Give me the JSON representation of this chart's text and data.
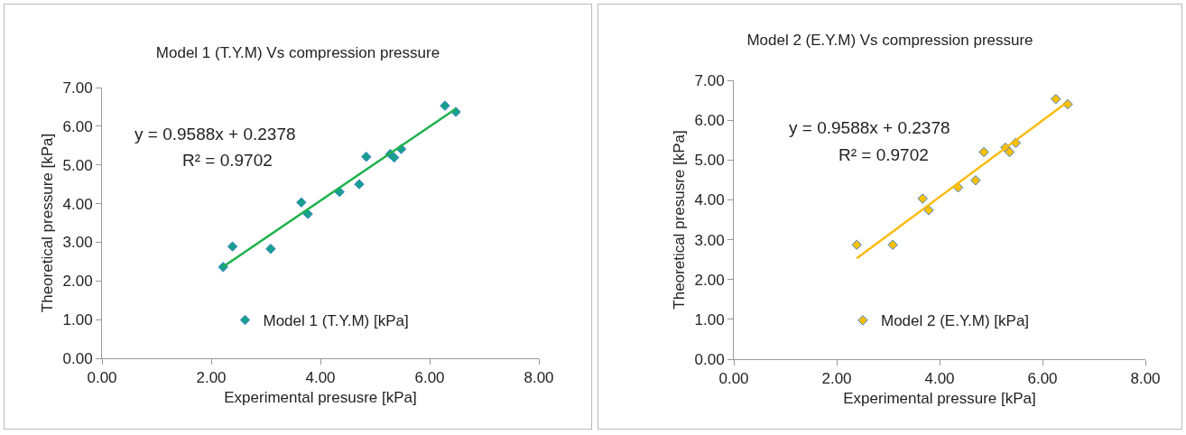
{
  "chart_data": [
    {
      "type": "scatter",
      "title": "Model 1 (T.Y.M) Vs compression pressure",
      "xlabel": "Experimental presusre [kPa]",
      "ylabel": "Theoretical pressure [kPa]",
      "series": [
        {
          "name": "Model 1 (T.Y.M) [kPa]",
          "color": "#17a08c",
          "marker": "diamond",
          "x": [
            2.22,
            2.39,
            3.09,
            3.65,
            3.77,
            4.35,
            4.71,
            4.84,
            5.28,
            5.35,
            5.48,
            6.28,
            6.48
          ],
          "values": [
            2.36,
            2.89,
            2.83,
            4.03,
            3.73,
            4.3,
            4.5,
            5.21,
            5.28,
            5.19,
            5.41,
            6.53,
            6.37
          ]
        },
        {
          "type": "line",
          "color": "#1db14b",
          "marker": "none",
          "x": [
            2.22,
            6.48
          ],
          "values": [
            2.37,
            6.45
          ]
        }
      ],
      "annotations": [
        "y = 0.9588x + 0.2378",
        "R² = 0.9702"
      ],
      "xlim": [
        0,
        8
      ],
      "xticks": [
        {
          "value": 0,
          "label": "0.00"
        },
        {
          "value": 2,
          "label": "2.00"
        },
        {
          "value": 4,
          "label": "4.00"
        },
        {
          "value": 6,
          "label": "6.00"
        },
        {
          "value": 8,
          "label": "8.00"
        }
      ],
      "ylim": [
        0,
        7
      ],
      "yticks": [
        {
          "value": 0,
          "label": "0.00"
        },
        {
          "value": 1,
          "label": "1.00"
        },
        {
          "value": 2,
          "label": "2.00"
        },
        {
          "value": 3,
          "label": "3.00"
        },
        {
          "value": 4,
          "label": "4.00"
        },
        {
          "value": 5,
          "label": "5.00"
        },
        {
          "value": 6,
          "label": "6.00"
        },
        {
          "value": 7,
          "label": "7.00"
        }
      ],
      "grid": false,
      "legend": "bottom"
    },
    {
      "type": "scatter",
      "title": "Model 2 (E.Y.M) Vs compression pressure",
      "xlabel": "Experimental pressure [kPa]",
      "ylabel": "Theoretical presusre [kPa]",
      "series": [
        {
          "name": "Model 2 (E.Y.M) [kPa]",
          "color": "#ffc000",
          "marker": "diamond",
          "x": [
            2.39,
            3.09,
            3.67,
            3.79,
            4.36,
            4.7,
            4.86,
            5.28,
            5.36,
            5.48,
            6.26,
            6.49
          ],
          "values": [
            2.87,
            2.87,
            4.03,
            3.74,
            4.31,
            4.49,
            5.2,
            5.31,
            5.2,
            5.43,
            6.53,
            6.4
          ]
        },
        {
          "type": "line",
          "color": "#fbbb10",
          "marker": "none",
          "x": [
            2.39,
            6.49
          ],
          "values": [
            2.53,
            6.46
          ]
        }
      ],
      "annotations": [
        "y = 0.9588x + 0.2378",
        "R² = 0.9702"
      ],
      "xlim": [
        0,
        8
      ],
      "xticks": [
        {
          "value": 0,
          "label": "0.00"
        },
        {
          "value": 2,
          "label": "2.00"
        },
        {
          "value": 4,
          "label": "4.00"
        },
        {
          "value": 6,
          "label": "6.00"
        },
        {
          "value": 8,
          "label": "8.00"
        }
      ],
      "ylim": [
        0,
        7
      ],
      "yticks": [
        {
          "value": 0,
          "label": "0.00"
        },
        {
          "value": 1,
          "label": "1.00"
        },
        {
          "value": 2,
          "label": "2.00"
        },
        {
          "value": 3,
          "label": "3.00"
        },
        {
          "value": 4,
          "label": "4.00"
        },
        {
          "value": 5,
          "label": "5.00"
        },
        {
          "value": 6,
          "label": "6.00"
        },
        {
          "value": 7,
          "label": "7.00"
        }
      ],
      "grid": false,
      "legend": "bottom"
    }
  ]
}
